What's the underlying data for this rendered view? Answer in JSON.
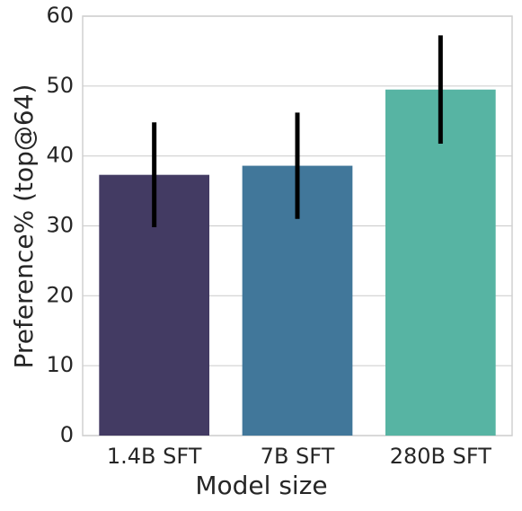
{
  "chart_data": {
    "type": "bar",
    "xlabel": "Model size",
    "ylabel": "Preference% (top@64)",
    "categories": [
      "1.4B SFT",
      "7B SFT",
      "280B SFT"
    ],
    "values": [
      37.3,
      38.6,
      49.5
    ],
    "errors": [
      7.5,
      7.6,
      7.75
    ],
    "colors": [
      "#433b63",
      "#41779a",
      "#57b4a3"
    ],
    "ylim": [
      0,
      60
    ],
    "yticks": [
      0,
      10,
      20,
      30,
      40,
      50,
      60
    ],
    "grid": true
  }
}
